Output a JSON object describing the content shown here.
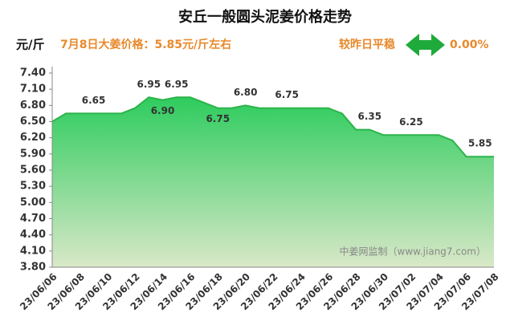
{
  "chart_data": {
    "type": "area",
    "title": "安丘一般圆头泥姜价格走势",
    "y_unit": "元/斤",
    "subtitle": "7月8日大姜价格：5.85元/斤左右",
    "change_text": "较昨日平稳",
    "change_value": "0.00%",
    "watermark": "中姜网监制（www.jiang7.com）",
    "color": "#2db34a",
    "categories": [
      "23/06/06",
      null,
      "23/06/08",
      null,
      "23/06/10",
      null,
      "23/06/12",
      null,
      "23/06/14",
      null,
      "23/06/16",
      null,
      "23/06/18",
      null,
      "23/06/20",
      null,
      "23/06/22",
      null,
      "23/06/24",
      null,
      "23/06/26",
      null,
      "23/06/28",
      null,
      "23/06/30",
      null,
      "23/07/02",
      null,
      "23/07/04",
      null,
      "23/07/06",
      null,
      "23/07/08"
    ],
    "values": [
      6.5,
      6.65,
      6.65,
      6.65,
      6.65,
      6.65,
      6.75,
      6.95,
      6.9,
      6.95,
      6.95,
      6.85,
      6.75,
      6.75,
      6.8,
      6.75,
      6.75,
      6.75,
      6.75,
      6.75,
      6.75,
      6.65,
      6.35,
      6.35,
      6.25,
      6.25,
      6.25,
      6.25,
      6.25,
      6.15,
      5.85,
      5.85,
      5.85
    ],
    "value_labels": [
      null,
      null,
      null,
      "6.65",
      null,
      null,
      null,
      "6.95",
      "6.90",
      "6.95",
      null,
      null,
      "6.75",
      null,
      "6.80",
      null,
      null,
      "6.75",
      null,
      null,
      null,
      null,
      null,
      "6.35",
      null,
      null,
      "6.25",
      null,
      null,
      null,
      null,
      "5.85",
      null
    ],
    "ylim": [
      3.8,
      7.4
    ],
    "yticks": [
      {
        "value": 3.8,
        "label": "3.80"
      },
      {
        "value": 4.1,
        "label": "4.10"
      },
      {
        "value": 4.4,
        "label": "4.40"
      },
      {
        "value": 4.7,
        "label": "4.70"
      },
      {
        "value": 5.0,
        "label": "5.00"
      },
      {
        "value": 5.3,
        "label": "5.30"
      },
      {
        "value": 5.6,
        "label": "5.60"
      },
      {
        "value": 5.9,
        "label": "5.90"
      },
      {
        "value": 6.2,
        "label": "6.20"
      },
      {
        "value": 6.5,
        "label": "6.50"
      },
      {
        "value": 6.8,
        "label": "6.80"
      },
      {
        "value": 7.1,
        "label": "7.10"
      },
      {
        "value": 7.4,
        "label": "7.40"
      }
    ],
    "grid": false
  }
}
